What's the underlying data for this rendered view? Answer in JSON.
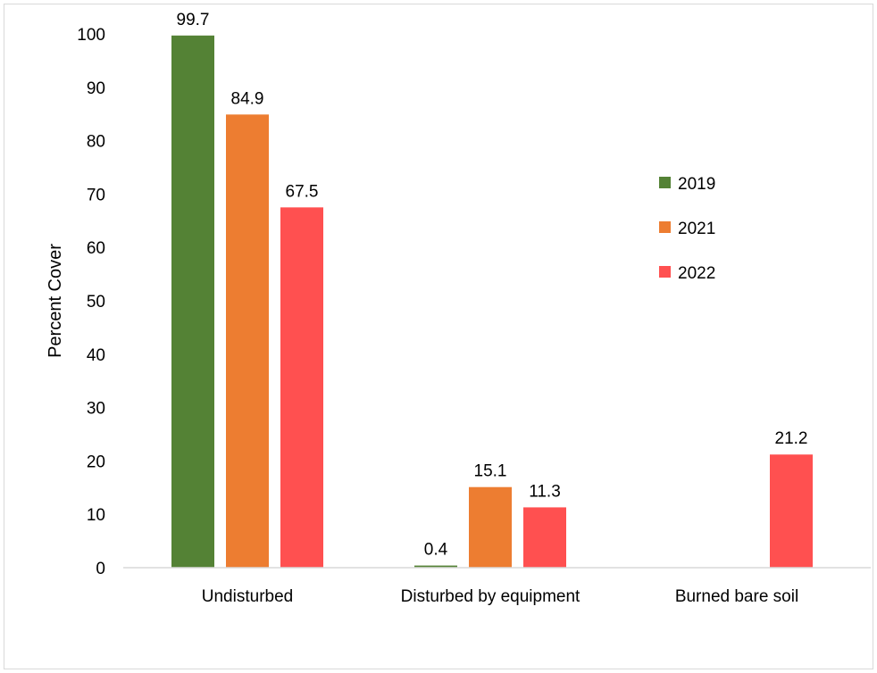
{
  "chart_data": {
    "type": "bar",
    "title": "",
    "xlabel": "",
    "ylabel": "Percent Cover",
    "ylim": [
      0,
      100
    ],
    "yticks": [
      0,
      10,
      20,
      30,
      40,
      50,
      60,
      70,
      80,
      90,
      100
    ],
    "grid": false,
    "legend_position": "right",
    "categories": [
      "Undisturbed",
      "Disturbed by equipment",
      "Burned bare soil"
    ],
    "series": [
      {
        "name": "2019",
        "color": "#548235",
        "values": [
          99.7,
          0.4,
          null
        ],
        "labels": [
          "99.7",
          "0.4",
          ""
        ]
      },
      {
        "name": "2021",
        "color": "#ED7D31",
        "values": [
          84.9,
          15.1,
          null
        ],
        "labels": [
          "84.9",
          "15.1",
          ""
        ]
      },
      {
        "name": "2022",
        "color": "#FF5050",
        "values": [
          67.5,
          11.3,
          21.2
        ],
        "labels": [
          "67.5",
          "11.3",
          "21.2"
        ]
      }
    ]
  }
}
